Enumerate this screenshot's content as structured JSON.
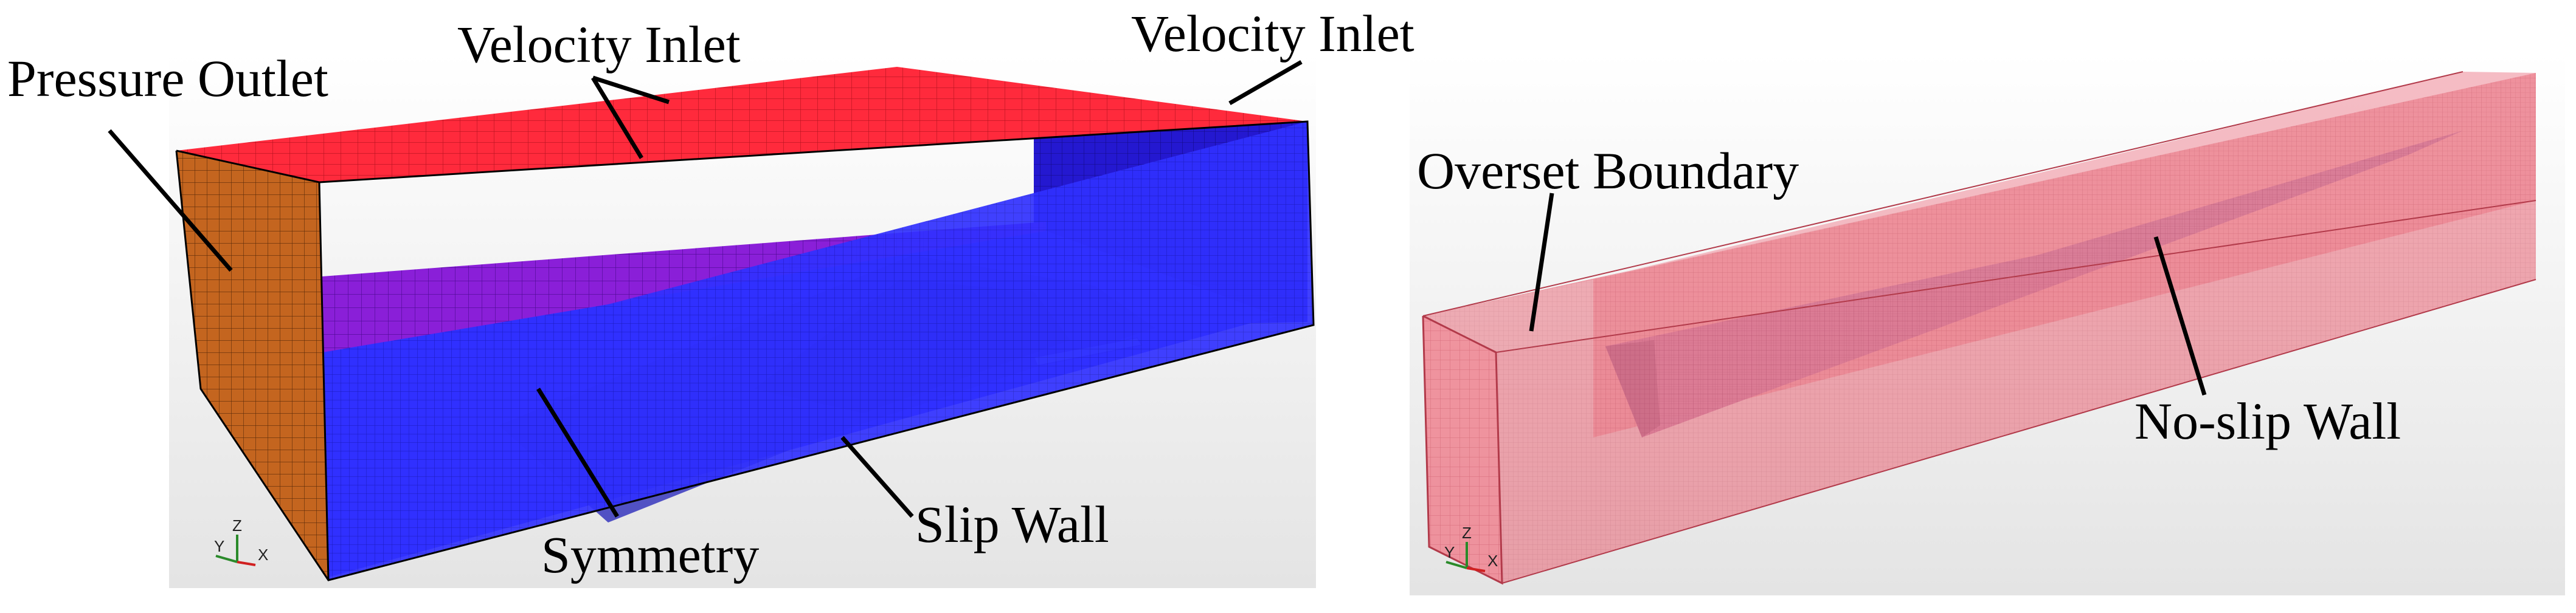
{
  "left_panel": {
    "labels": {
      "pressure_outlet": "Pressure Outlet",
      "velocity_inlet_top": "Velocity Inlet",
      "velocity_inlet_side": "Velocity Inlet",
      "symmetry": "Symmetry",
      "slip_wall": "Slip Wall"
    },
    "axis": {
      "y": "Y",
      "z": "Z",
      "x": "X"
    },
    "colors": {
      "inlet": "#ff2a3c",
      "outlet": "#c4651f",
      "wall": "#2a2ae0",
      "symmetry": "#3a3aff"
    }
  },
  "right_panel": {
    "labels": {
      "overset_boundary": "Overset Boundary",
      "no_slip_wall": "No-slip Wall"
    },
    "axis": {
      "y": "Y",
      "z": "Z",
      "x": "X"
    },
    "colors": {
      "overset": "#e8707e",
      "hull": "#c48ab4"
    }
  }
}
